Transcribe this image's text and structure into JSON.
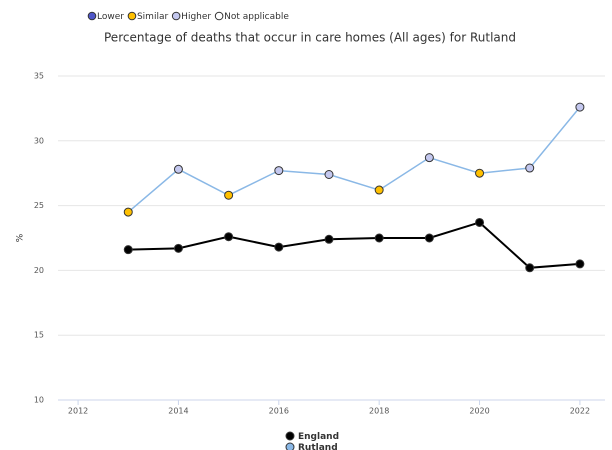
{
  "chart_data": {
    "type": "line",
    "title": "Percentage of deaths that occur in care homes (All ages) for Rutland",
    "significance_legend": [
      {
        "label": "Lower",
        "color": "#4f56c8"
      },
      {
        "label": "Similar",
        "color": "#ffc000"
      },
      {
        "label": "Higher",
        "color": "#c4c8ef"
      },
      {
        "label": "Not applicable",
        "color": "#ffffff"
      }
    ],
    "y_label": "%",
    "x": [
      2013,
      2014,
      2015,
      2016,
      2017,
      2018,
      2019,
      2020,
      2021,
      2022
    ],
    "xlim": [
      2011.6,
      2022.5
    ],
    "xticks": [
      2012,
      2014,
      2016,
      2018,
      2020,
      2022
    ],
    "ylim": [
      10,
      35
    ],
    "yticks": [
      10,
      15,
      20,
      25,
      30,
      35
    ],
    "grid": true,
    "series": [
      {
        "name": "England",
        "color": "#000000",
        "marker_color": "#000000",
        "values": [
          21.6,
          21.7,
          22.6,
          21.8,
          22.4,
          22.5,
          22.5,
          23.7,
          20.2,
          20.5
        ]
      },
      {
        "name": "Rutland",
        "color": "#8ab8e6",
        "point_colors": [
          "#ffc000",
          "#c4c8ef",
          "#ffc000",
          "#c4c8ef",
          "#c4c8ef",
          "#ffc000",
          "#c4c8ef",
          "#ffc000",
          "#c4c8ef",
          "#c4c8ef"
        ],
        "values": [
          24.5,
          27.8,
          25.8,
          27.7,
          27.4,
          26.2,
          28.7,
          27.5,
          27.9,
          32.6
        ]
      }
    ]
  }
}
